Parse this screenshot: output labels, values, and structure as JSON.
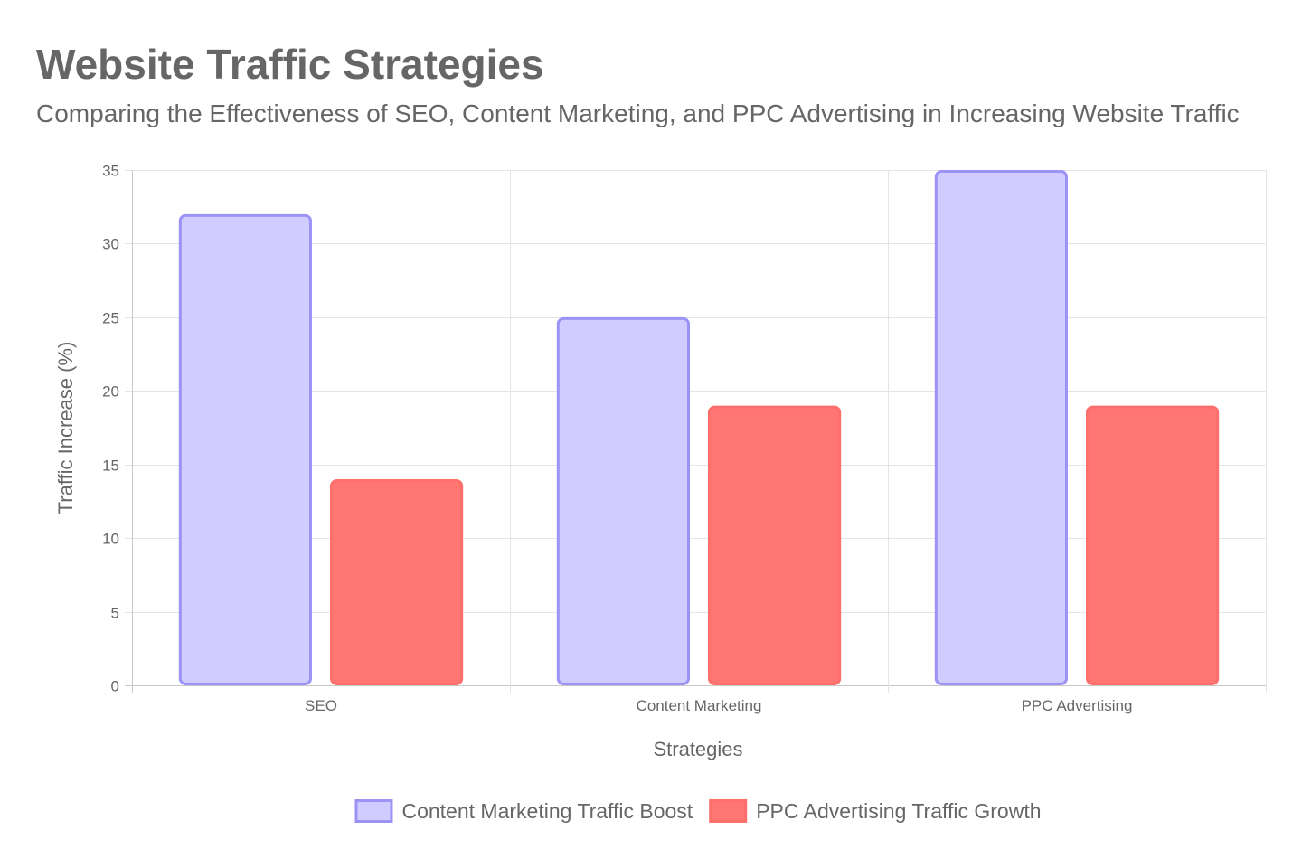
{
  "chart_data": {
    "type": "bar",
    "title": "Website Traffic Strategies",
    "subtitle": "Comparing the Effectiveness of SEO, Content Marketing, and PPC Advertising in Increasing Website Traffic",
    "xlabel": "Strategies",
    "ylabel": "Traffic Increase (%)",
    "categories": [
      "SEO",
      "Content Marketing",
      "PPC Advertising"
    ],
    "ylim": [
      0,
      35
    ],
    "yticks": [
      0,
      5,
      10,
      15,
      20,
      25,
      30,
      35
    ],
    "grid": true,
    "legend_position": "bottom",
    "series": [
      {
        "name": "Content Marketing Traffic Boost",
        "values": [
          32,
          25,
          35
        ],
        "fill": "#d0ccff",
        "stroke": "#9b93f5"
      },
      {
        "name": "PPC Advertising Traffic Growth",
        "values": [
          14,
          19,
          19
        ],
        "fill": "#ff7672",
        "stroke": "#ff6f6b"
      }
    ]
  }
}
